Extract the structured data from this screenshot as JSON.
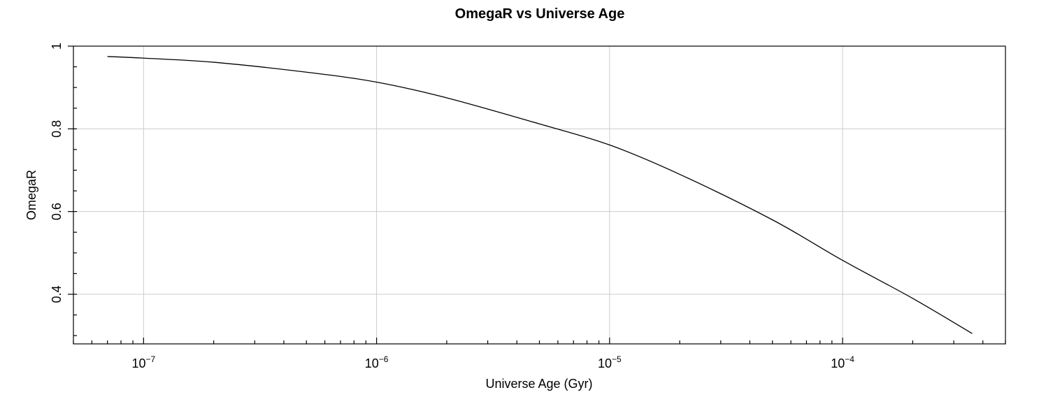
{
  "chart_data": {
    "type": "line",
    "title": "OmegaR vs Universe Age",
    "xlabel": "Universe Age (Gyr)",
    "ylabel": "OmegaR",
    "xscale": "log",
    "xlim": [
      5e-08,
      0.0005
    ],
    "ylim": [
      0.28,
      1.0
    ],
    "grid": true,
    "x_ticks": [
      {
        "base": "10",
        "exp": "−7",
        "value": 1e-07
      },
      {
        "base": "10",
        "exp": "−6",
        "value": 1e-06
      },
      {
        "base": "10",
        "exp": "−5",
        "value": 1e-05
      },
      {
        "base": "10",
        "exp": "−4",
        "value": 0.0001
      }
    ],
    "y_ticks": [
      {
        "label": "1",
        "value": 1.0
      },
      {
        "label": "0.8",
        "value": 0.8
      },
      {
        "label": "0.6",
        "value": 0.6
      },
      {
        "label": "0.4",
        "value": 0.4
      }
    ],
    "series": [
      {
        "x": [
          7e-08,
          1e-07,
          2e-07,
          5e-07,
          1e-06,
          2e-06,
          5e-06,
          1e-05,
          2e-05,
          5e-05,
          0.0001,
          0.0002,
          0.00036
        ],
        "y": [
          0.975,
          0.971,
          0.961,
          0.937,
          0.913,
          0.875,
          0.812,
          0.761,
          0.69,
          0.58,
          0.482,
          0.39,
          0.305
        ]
      }
    ]
  }
}
